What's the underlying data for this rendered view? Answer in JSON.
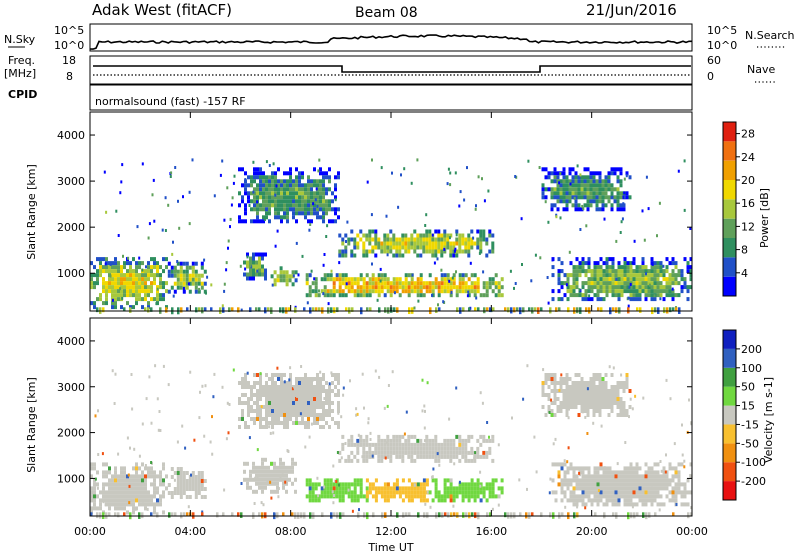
{
  "header": {
    "station": "Adak West (fitACF)",
    "beam": "Beam 08",
    "date": "21/Jun/2016"
  },
  "panels": {
    "nsky": {
      "label": "N.Sky",
      "tick_top": "10^5",
      "tick_bottom": "10^0",
      "right_label": "N.Search",
      "right_tick_top": "10^5",
      "right_tick_bottom": "10^0"
    },
    "freq": {
      "label_line1": "Freq.",
      "label_line2": "[MHz]",
      "tick_top": "18",
      "tick_bottom": "8",
      "right_label": "Nave",
      "right_tick_top": "60",
      "right_tick_bottom": "0"
    },
    "cpid": {
      "label": "CPID",
      "text": "normalsound (fast) -157 RF"
    }
  },
  "colors": {
    "power": [
      "#0000ff",
      "#2050c8",
      "#2f8f5f",
      "#5fa05a",
      "#a8c83c",
      "#f0d800",
      "#f0a000",
      "#f07010",
      "#e02010"
    ],
    "velocity": [
      "#e81010",
      "#f05010",
      "#f09010",
      "#f8c030",
      "#c8c8c0",
      "#70d840",
      "#40a040",
      "#3060c0",
      "#1020c0"
    ]
  },
  "chart_data": [
    {
      "type": "heatmap",
      "title": "Power",
      "ylabel": "Slant Range [km]",
      "ylim": [
        180,
        4500
      ],
      "y_ticks": [
        "1000",
        "2000",
        "3000",
        "4000"
      ],
      "colorbar_label": "Power [dB]",
      "colorbar_ticks": [
        "4",
        "8",
        "12",
        "16",
        "20",
        "24",
        "28"
      ],
      "colorbar_range": [
        0,
        30
      ],
      "blobs": [
        {
          "t0": 0.0,
          "t1": 3.0,
          "r0": 300,
          "r1": 1350,
          "v": 13
        },
        {
          "t0": 3.1,
          "t1": 4.6,
          "r0": 600,
          "r1": 1250,
          "v": 10
        },
        {
          "t0": 6.1,
          "t1": 7.0,
          "r0": 900,
          "r1": 1450,
          "v": 8
        },
        {
          "t0": 7.2,
          "t1": 8.2,
          "r0": 750,
          "r1": 1150,
          "v": 11
        },
        {
          "t0": 8.6,
          "t1": 16.4,
          "r0": 550,
          "r1": 1000,
          "v": 16
        },
        {
          "t0": 9.9,
          "t1": 16.0,
          "r0": 1400,
          "r1": 1950,
          "v": 12
        },
        {
          "t0": 5.9,
          "t1": 9.9,
          "r0": 2100,
          "r1": 3300,
          "v": 6
        },
        {
          "t0": 18.4,
          "t1": 24.0,
          "r0": 400,
          "r1": 1350,
          "v": 9
        },
        {
          "t0": 18.0,
          "t1": 21.5,
          "r0": 2400,
          "r1": 3300,
          "v": 6
        }
      ]
    },
    {
      "type": "heatmap",
      "title": "Velocity",
      "xlabel": "Time UT",
      "ylabel": "Slant Range [km]",
      "ylim": [
        180,
        4500
      ],
      "y_ticks": [
        "1000",
        "2000",
        "3000",
        "4000"
      ],
      "x_ticks": [
        "00:00",
        "04:00",
        "08:00",
        "12:00",
        "16:00",
        "20:00",
        "00:00"
      ],
      "colorbar_label": "Velocity [m s-1]",
      "colorbar_ticks": [
        "-200",
        "-100",
        "-50",
        "-15",
        "15",
        "50",
        "100",
        "200"
      ],
      "blobs": [
        {
          "t0": 0.0,
          "t1": 3.0,
          "r0": 300,
          "r1": 1350,
          "v": "gs"
        },
        {
          "t0": 3.1,
          "t1": 4.6,
          "r0": 600,
          "r1": 1250,
          "v": "gs"
        },
        {
          "t0": 6.1,
          "t1": 8.2,
          "r0": 750,
          "r1": 1450,
          "v": "gs"
        },
        {
          "t0": 8.6,
          "t1": 11.0,
          "r0": 550,
          "r1": 1000,
          "v": 30
        },
        {
          "t0": 11.0,
          "t1": 13.5,
          "r0": 550,
          "r1": 1000,
          "v": -30
        },
        {
          "t0": 13.5,
          "t1": 16.4,
          "r0": 550,
          "r1": 1000,
          "v": 30
        },
        {
          "t0": 9.9,
          "t1": 16.0,
          "r0": 1400,
          "r1": 1950,
          "v": "gs"
        },
        {
          "t0": 5.9,
          "t1": 9.9,
          "r0": 2100,
          "r1": 3300,
          "v": "gs"
        },
        {
          "t0": 18.4,
          "t1": 24.0,
          "r0": 400,
          "r1": 1350,
          "v": "gs"
        },
        {
          "t0": 18.0,
          "t1": 21.5,
          "r0": 2400,
          "r1": 3300,
          "v": "gs"
        }
      ]
    }
  ]
}
